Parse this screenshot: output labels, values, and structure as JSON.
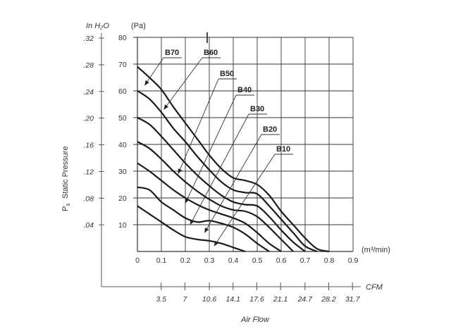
{
  "chart_data": {
    "type": "line",
    "title": "",
    "grid": true,
    "y_left_unit": "In H₂O",
    "y_right_unit": "(Pa)",
    "y_left_ticks": [
      ".32",
      ".28",
      ".24",
      ".20",
      ".16",
      ".12",
      ".08",
      ".04"
    ],
    "y_pa_ticks": [
      "80",
      "70",
      "60",
      "50",
      "40",
      "30",
      "20",
      "10"
    ],
    "ylabel_main": "Static Pressure",
    "ylabel_symbol": "P",
    "ylabel_sub": "s",
    "ylim": [
      0,
      80
    ],
    "xlim": [
      0,
      0.9
    ],
    "x_ticks": [
      "0",
      "0.1",
      "0.2",
      "0.3",
      "0.4",
      "0.5",
      "0.6",
      "0.7",
      "0.8",
      "0.9"
    ],
    "x_unit": "(m³/min)",
    "cfm_unit": "CFM",
    "cfm_ticks": [
      "3.5",
      "7",
      "10.6",
      "14.1",
      "17.6",
      "21.1",
      "24.7",
      "28.2",
      "31.7"
    ],
    "xlabel": "Air Flow",
    "series": [
      {
        "name": "B70",
        "x": [
          0,
          0.05,
          0.1,
          0.15,
          0.2,
          0.25,
          0.3,
          0.35,
          0.4,
          0.45,
          0.5,
          0.55,
          0.6,
          0.65,
          0.7,
          0.75,
          0.8
        ],
        "y": [
          69,
          65,
          60.5,
          54,
          48,
          42,
          36,
          31,
          27.5,
          26.5,
          25,
          21,
          15,
          10,
          5,
          1,
          0
        ]
      },
      {
        "name": "B60",
        "x": [
          0,
          0.05,
          0.1,
          0.15,
          0.2,
          0.25,
          0.3,
          0.35,
          0.4,
          0.45,
          0.5,
          0.55,
          0.6,
          0.65,
          0.7,
          0.75
        ],
        "y": [
          60,
          57,
          52,
          46,
          41,
          35.5,
          30.5,
          26,
          23,
          22,
          21.5,
          17,
          12,
          7,
          2,
          0
        ]
      },
      {
        "name": "B50",
        "x": [
          0,
          0.05,
          0.1,
          0.15,
          0.2,
          0.25,
          0.3,
          0.35,
          0.4,
          0.45,
          0.5,
          0.55,
          0.6,
          0.65,
          0.7
        ],
        "y": [
          50,
          47.5,
          43,
          38,
          33,
          28.5,
          24.5,
          21,
          18.5,
          17.5,
          17,
          13,
          8,
          3.5,
          0
        ]
      },
      {
        "name": "B40",
        "x": [
          0,
          0.05,
          0.1,
          0.15,
          0.2,
          0.25,
          0.3,
          0.35,
          0.4,
          0.45,
          0.5,
          0.55,
          0.6,
          0.65
        ],
        "y": [
          41,
          38.5,
          34.5,
          30,
          26,
          22.5,
          19.5,
          17,
          15.5,
          15,
          13,
          9,
          4.5,
          0
        ]
      },
      {
        "name": "B30",
        "x": [
          0,
          0.05,
          0.1,
          0.15,
          0.2,
          0.25,
          0.3,
          0.35,
          0.4,
          0.45,
          0.5,
          0.55,
          0.6
        ],
        "y": [
          33,
          30,
          26.5,
          23,
          20,
          17.5,
          15.5,
          14,
          12.5,
          10.5,
          7,
          3,
          0
        ]
      },
      {
        "name": "B20",
        "x": [
          0,
          0.05,
          0.1,
          0.15,
          0.2,
          0.25,
          0.3,
          0.35,
          0.4,
          0.45,
          0.5,
          0.55
        ],
        "y": [
          24,
          23,
          18.5,
          15.5,
          12.5,
          11,
          11.5,
          10.5,
          9,
          6.5,
          3,
          0
        ]
      },
      {
        "name": "B10",
        "x": [
          0,
          0.05,
          0.1,
          0.15,
          0.2,
          0.25,
          0.3,
          0.35,
          0.4,
          0.45
        ],
        "y": [
          17,
          14,
          11,
          8,
          5.5,
          4.5,
          4,
          3,
          1.5,
          0
        ]
      }
    ]
  }
}
